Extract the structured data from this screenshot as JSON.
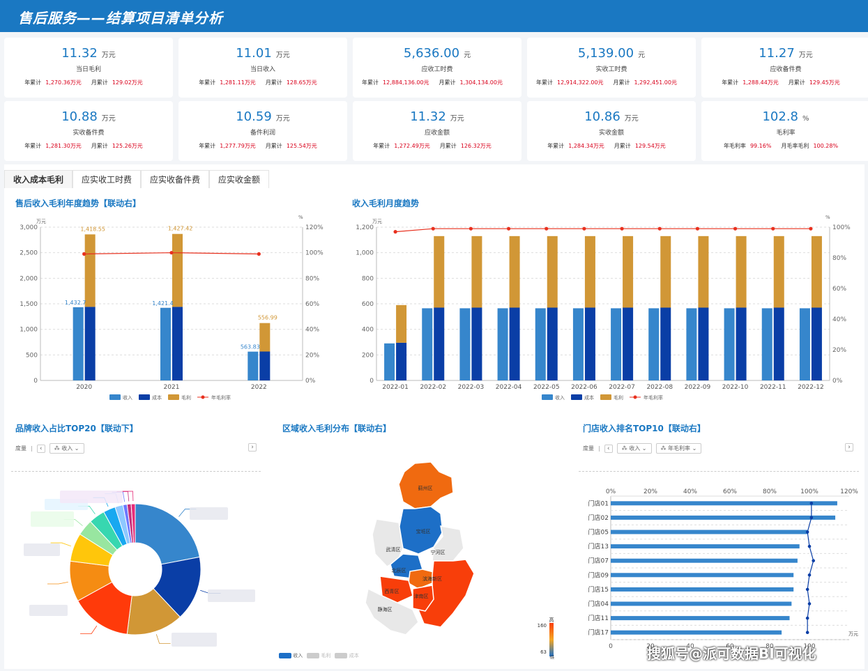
{
  "header": {
    "title": "售后服务——结算项目清单分析"
  },
  "kpis": [
    {
      "value": "11.32",
      "unit": "万元",
      "label": "当日毛利",
      "y_label": "年累计",
      "y_val": "1,270.36万元",
      "m_label": "月累计",
      "m_val": "129.02万元"
    },
    {
      "value": "11.01",
      "unit": "万元",
      "label": "当日收入",
      "y_label": "年累计",
      "y_val": "1,281.11万元",
      "m_label": "月累计",
      "m_val": "128.65万元"
    },
    {
      "value": "5,636.00",
      "unit": "元",
      "label": "应收工时费",
      "y_label": "年累计",
      "y_val": "12,884,136.00元",
      "m_label": "月累计",
      "m_val": "1,304,134.00元"
    },
    {
      "value": "5,139.00",
      "unit": "元",
      "label": "实收工时费",
      "y_label": "年累计",
      "y_val": "12,914,322.00元",
      "m_label": "月累计",
      "m_val": "1,292,451.00元"
    },
    {
      "value": "11.27",
      "unit": "万元",
      "label": "应收备件费",
      "y_label": "年累计",
      "y_val": "1,288.44万元",
      "m_label": "月累计",
      "m_val": "129.45万元"
    },
    {
      "value": "10.88",
      "unit": "万元",
      "label": "实收备件费",
      "y_label": "年累计",
      "y_val": "1,281.30万元",
      "m_label": "月累计",
      "m_val": "125.26万元"
    },
    {
      "value": "10.59",
      "unit": "万元",
      "label": "备件利润",
      "y_label": "年累计",
      "y_val": "1,277.79万元",
      "m_label": "月累计",
      "m_val": "125.54万元"
    },
    {
      "value": "11.32",
      "unit": "万元",
      "label": "应收金额",
      "y_label": "年累计",
      "y_val": "1,272.49万元",
      "m_label": "月累计",
      "m_val": "126.32万元"
    },
    {
      "value": "10.86",
      "unit": "万元",
      "label": "实收金额",
      "y_label": "年累计",
      "y_val": "1,284.34万元",
      "m_label": "月累计",
      "m_val": "129.54万元"
    },
    {
      "value": "102.8",
      "unit": "%",
      "label": "毛利率",
      "y_label": "年毛利率",
      "y_val": "99.16%",
      "m_label": "月毛率毛利",
      "m_val": "100.28%"
    }
  ],
  "tabs": [
    "收入成本毛利",
    "应实收工时费",
    "应实收备件费",
    "应实收金额"
  ],
  "sections": {
    "annual": "售后收入毛利年度趋势【联动右】",
    "monthly": "收入毛利月度趋势",
    "brand": "品牌收入占比TOP20【联动下】",
    "region": "区域收入毛利分布【联动右】",
    "store": "门店收入排名TOP10【联动右】"
  },
  "controls": {
    "measure_label": "度量",
    "brand_dim": "收入",
    "store_dim1": "收入",
    "store_dim2": "年毛利率"
  },
  "map_labels": [
    "蓟州区",
    "宝坻区",
    "武清区",
    "宁河区",
    "北辰区",
    "滨海新区",
    "津南区",
    "西青区",
    "静海区"
  ],
  "map_legend": {
    "high": "高",
    "low": "低",
    "max": "160",
    "min": "63"
  },
  "map_series": [
    "收入",
    "毛利",
    "成本"
  ],
  "watermark": "搜狐号@派可数据BI可视化",
  "colors": {
    "income": "#3686cc",
    "cost": "#0a3ea6",
    "profit": "#d19736",
    "rate": "#e8301e",
    "accent": "#1a78c2"
  },
  "chart_data": [
    {
      "type": "bar",
      "categories": [
        "2020",
        "2021",
        "2022"
      ],
      "series": [
        {
          "name": "收入",
          "values": [
            1432.7,
            1421.4,
            563.83
          ]
        },
        {
          "name": "成本",
          "values": [
            1440,
            1440,
            566
          ]
        },
        {
          "name": "毛利",
          "values": [
            1418.55,
            1427.42,
            556.99
          ]
        },
        {
          "name": "年毛利率",
          "values": [
            99,
            100,
            99
          ]
        }
      ],
      "unit_left": "万元",
      "unit_right": "%",
      "ylim": [
        0,
        3000
      ],
      "y2lim": [
        0,
        120
      ],
      "yticks": [
        "0",
        "500",
        "1,000",
        "1,500",
        "2,000",
        "2,500",
        "3,000"
      ],
      "y2ticks": [
        "0%",
        "20%",
        "40%",
        "60%",
        "80%",
        "100%",
        "120%"
      ],
      "labels": {
        "income": [
          "1,432.7",
          "1,421.4",
          "563.83"
        ],
        "profit": [
          "1,418.55",
          "1,427.42",
          "556.99"
        ]
      }
    },
    {
      "type": "bar",
      "categories": [
        "2022-01",
        "2022-02",
        "2022-03",
        "2022-04",
        "2022-05",
        "2022-06",
        "2022-07",
        "2022-08",
        "2022-09",
        "2022-10",
        "2022-11",
        "2022-12"
      ],
      "series": [
        {
          "name": "收入",
          "values": [
            290,
            565,
            565,
            565,
            565,
            565,
            565,
            565,
            565,
            565,
            565,
            565
          ]
        },
        {
          "name": "成本",
          "values": [
            295,
            570,
            570,
            570,
            570,
            570,
            570,
            570,
            570,
            570,
            570,
            570
          ]
        },
        {
          "name": "毛利",
          "values": [
            295,
            560,
            560,
            560,
            560,
            560,
            560,
            560,
            560,
            560,
            560,
            560
          ]
        },
        {
          "name": "年毛利率",
          "values": [
            97,
            99,
            99,
            99,
            99,
            99,
            99,
            99,
            99,
            99,
            99,
            99
          ]
        }
      ],
      "unit_left": "万元",
      "unit_right": "%",
      "ylim": [
        0,
        1200
      ],
      "y2lim": [
        0,
        100
      ],
      "yticks": [
        "0",
        "200",
        "400",
        "600",
        "800",
        "1,000",
        "1,200"
      ],
      "y2ticks": [
        "0%",
        "20%",
        "40%",
        "60%",
        "80%",
        "100%"
      ]
    },
    {
      "type": "pie",
      "values": [
        22,
        16,
        14,
        15,
        10,
        7,
        4,
        4,
        3,
        2,
        1,
        1,
        1
      ],
      "colors": [
        "#3686cc",
        "#0a3ea6",
        "#d19736",
        "#ff3a0a",
        "#f58c12",
        "#ffc60b",
        "#98e6a0",
        "#37d7b0",
        "#18a8f0",
        "#8ec8ff",
        "#6c78ff",
        "#c5307a",
        "#e62e79"
      ]
    },
    {
      "type": "bar",
      "categories": [
        "门店01",
        "门店02",
        "门店05",
        "门店13",
        "门店07",
        "门店09",
        "门店15",
        "门店04",
        "门店11",
        "门店17"
      ],
      "series": [
        {
          "name": "收入",
          "values": [
            114,
            113,
            99,
            95,
            94,
            92,
            92,
            91,
            90,
            86
          ]
        },
        {
          "name": "年毛利率",
          "values": [
            101,
            101,
            99,
            100,
            102,
            100,
            99,
            100,
            99,
            99
          ]
        }
      ],
      "xlim_rate": [
        0,
        120
      ],
      "xticks_top": [
        "0%",
        "20%",
        "40%",
        "60%",
        "80%",
        "100%",
        "120%"
      ],
      "xticks_bottom": [
        "0",
        "20",
        "40",
        "60",
        "80",
        "100"
      ],
      "unit_bottom": "万元"
    }
  ]
}
